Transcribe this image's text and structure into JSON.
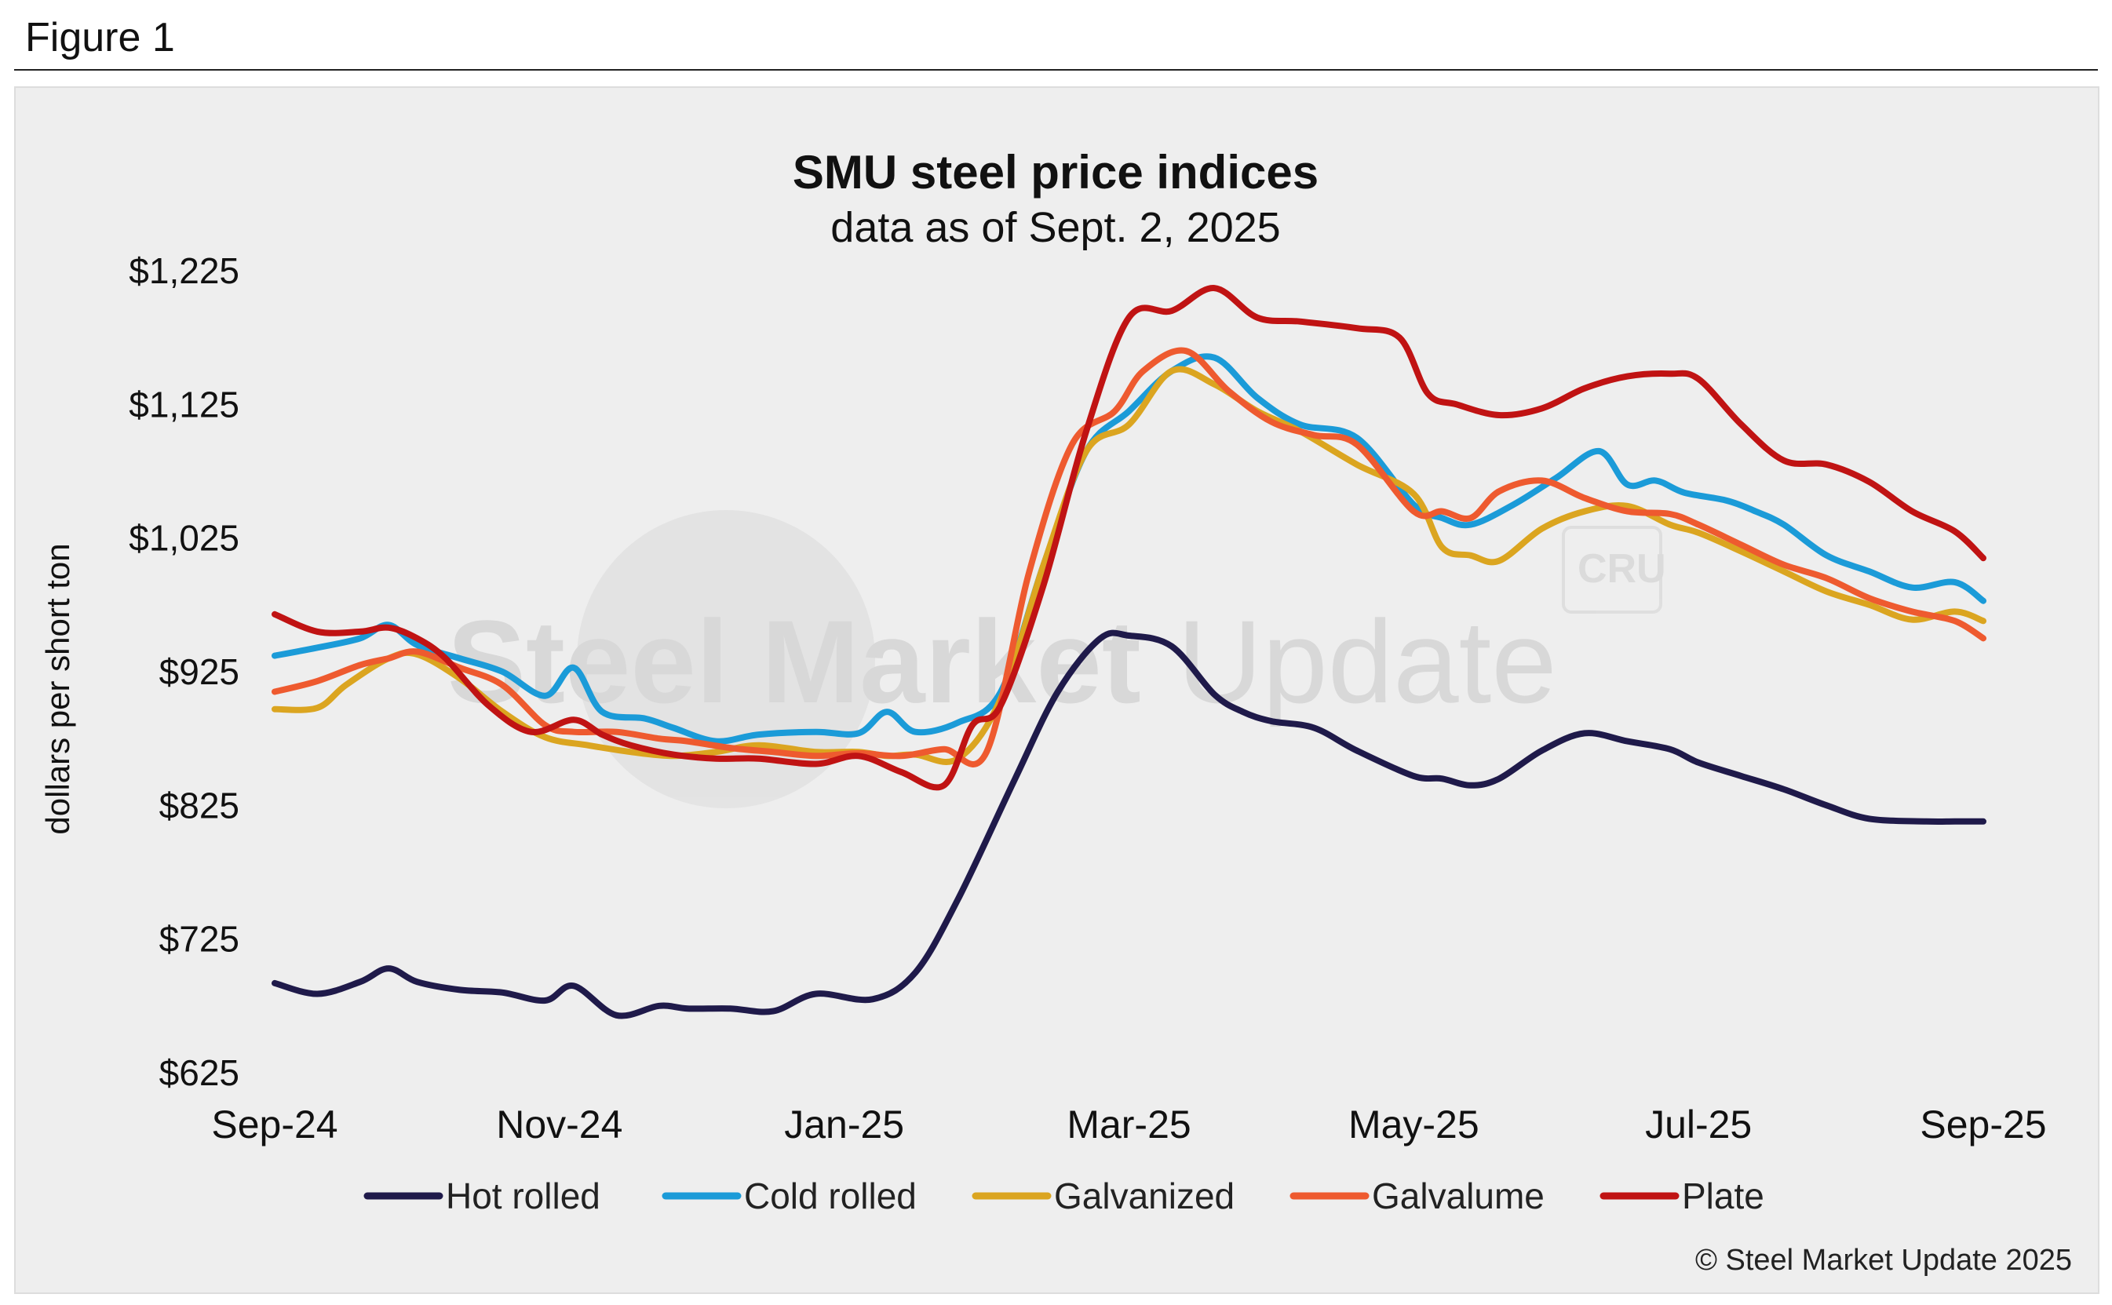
{
  "figure_label": "Figure 1",
  "credit": "© Steel Market Update 2025",
  "watermark": {
    "bold": "Steel Market",
    "light": "Update",
    "badge": "CRU"
  },
  "chart_data": {
    "type": "line",
    "title": "SMU steel price indices",
    "subtitle": "data as of Sept. 2, 2025",
    "xlabel": "",
    "ylabel": "dollars per short ton",
    "ylim": [
      625,
      1225
    ],
    "yticks": [
      625,
      725,
      825,
      925,
      1025,
      1125,
      1225
    ],
    "ytick_labels": [
      "$625",
      "$725",
      "$825",
      "$925",
      "$1,025",
      "$1,125",
      "$1,225"
    ],
    "x_tick_labels": [
      "Sep-24",
      "Nov-24",
      "Jan-25",
      "Mar-25",
      "May-25",
      "Jul-25",
      "Sep-25"
    ],
    "x_tick_months": [
      0,
      2,
      4,
      6,
      8,
      10,
      12
    ],
    "xlim": [
      0,
      12
    ],
    "grid": false,
    "legend_position": "bottom",
    "series": [
      {
        "name": "Hot rolled",
        "color": "#1f1a4a",
        "x": [
          0,
          0.3,
          0.6,
          0.8,
          1.0,
          1.3,
          1.6,
          1.9,
          2.1,
          2.4,
          2.7,
          2.9,
          3.2,
          3.5,
          3.8,
          4.2,
          4.5,
          4.8,
          5.2,
          5.5,
          5.8,
          6.0,
          6.3,
          6.6,
          6.8,
          7.0,
          7.3,
          7.6,
          8.0,
          8.2,
          8.4,
          8.6,
          8.9,
          9.2,
          9.5,
          9.8,
          10.0,
          10.3,
          10.6,
          10.9,
          11.2,
          11.6,
          11.8,
          12.0
        ],
        "values": [
          692,
          684,
          693,
          703,
          693,
          687,
          685,
          679,
          690,
          668,
          675,
          673,
          673,
          671,
          684,
          680,
          700,
          755,
          845,
          910,
          950,
          952,
          944,
          908,
          895,
          888,
          883,
          866,
          847,
          845,
          840,
          845,
          866,
          879,
          873,
          867,
          857,
          847,
          837,
          825,
          815,
          813,
          813,
          813
        ]
      },
      {
        "name": "Cold rolled",
        "color": "#1b9bd8",
        "x": [
          0,
          0.3,
          0.6,
          0.8,
          1.0,
          1.3,
          1.6,
          1.9,
          2.1,
          2.3,
          2.6,
          2.8,
          3.1,
          3.4,
          3.8,
          4.1,
          4.3,
          4.5,
          4.8,
          5.1,
          5.4,
          5.7,
          6.0,
          6.3,
          6.6,
          6.9,
          7.2,
          7.6,
          8.0,
          8.2,
          8.4,
          8.7,
          9.0,
          9.3,
          9.5,
          9.7,
          9.9,
          10.2,
          10.4,
          10.6,
          10.9,
          11.2,
          11.5,
          11.8,
          12.0
        ],
        "values": [
          937,
          943,
          950,
          960,
          945,
          935,
          925,
          907,
          928,
          895,
          890,
          883,
          873,
          878,
          880,
          879,
          895,
          880,
          887,
          910,
          1005,
          1090,
          1120,
          1150,
          1160,
          1130,
          1110,
          1100,
          1050,
          1040,
          1035,
          1050,
          1070,
          1090,
          1065,
          1068,
          1059,
          1053,
          1045,
          1035,
          1012,
          1000,
          988,
          992,
          978
        ]
      },
      {
        "name": "Galvanized",
        "color": "#dba520",
        "x": [
          0,
          0.3,
          0.5,
          0.8,
          1.0,
          1.3,
          1.6,
          1.9,
          2.2,
          2.5,
          2.8,
          3.1,
          3.4,
          3.8,
          4.1,
          4.3,
          4.5,
          4.8,
          5.1,
          5.4,
          5.7,
          6.0,
          6.3,
          6.6,
          6.9,
          7.2,
          7.6,
          8.0,
          8.2,
          8.4,
          8.6,
          8.9,
          9.2,
          9.5,
          9.8,
          10.0,
          10.3,
          10.6,
          10.9,
          11.2,
          11.5,
          11.8,
          12.0
        ],
        "values": [
          897,
          898,
          915,
          935,
          938,
          920,
          895,
          876,
          870,
          865,
          862,
          865,
          870,
          865,
          865,
          862,
          863,
          860,
          905,
          1005,
          1090,
          1110,
          1150,
          1140,
          1120,
          1105,
          1080,
          1058,
          1018,
          1012,
          1008,
          1032,
          1045,
          1049,
          1035,
          1029,
          1015,
          1000,
          985,
          975,
          964,
          970,
          963
        ]
      },
      {
        "name": "Galvalume",
        "color": "#ee5a2f",
        "x": [
          0,
          0.3,
          0.6,
          0.8,
          1.0,
          1.3,
          1.6,
          1.9,
          2.1,
          2.4,
          2.7,
          2.9,
          3.2,
          3.5,
          3.8,
          4.1,
          4.4,
          4.7,
          5.0,
          5.3,
          5.6,
          5.9,
          6.1,
          6.4,
          6.7,
          7.0,
          7.3,
          7.6,
          8.0,
          8.2,
          8.4,
          8.6,
          8.9,
          9.2,
          9.5,
          9.8,
          10.0,
          10.3,
          10.6,
          10.9,
          11.2,
          11.5,
          11.8,
          12.0
        ],
        "values": [
          910,
          918,
          930,
          935,
          940,
          928,
          915,
          885,
          880,
          880,
          875,
          873,
          868,
          865,
          862,
          864,
          862,
          867,
          865,
          1000,
          1095,
          1120,
          1150,
          1165,
          1135,
          1112,
          1102,
          1095,
          1045,
          1045,
          1040,
          1060,
          1068,
          1055,
          1045,
          1043,
          1035,
          1020,
          1005,
          995,
          980,
          970,
          963,
          950
        ]
      },
      {
        "name": "Plate",
        "color": "#c01313",
        "x": [
          0,
          0.3,
          0.6,
          0.8,
          1.0,
          1.2,
          1.5,
          1.8,
          2.1,
          2.3,
          2.5,
          2.8,
          3.1,
          3.4,
          3.8,
          4.1,
          4.4,
          4.7,
          4.9,
          5.1,
          5.4,
          5.7,
          6.0,
          6.3,
          6.6,
          6.9,
          7.2,
          7.6,
          7.9,
          8.1,
          8.3,
          8.6,
          8.9,
          9.2,
          9.5,
          9.8,
          10.0,
          10.3,
          10.6,
          10.9,
          11.2,
          11.5,
          11.8,
          12.0
        ],
        "values": [
          968,
          955,
          955,
          958,
          950,
          935,
          900,
          880,
          889,
          878,
          870,
          863,
          860,
          860,
          856,
          862,
          850,
          840,
          885,
          900,
          990,
          1105,
          1190,
          1195,
          1212,
          1190,
          1187,
          1182,
          1175,
          1133,
          1125,
          1117,
          1122,
          1137,
          1146,
          1148,
          1144,
          1110,
          1083,
          1080,
          1067,
          1045,
          1030,
          1010
        ]
      }
    ]
  }
}
